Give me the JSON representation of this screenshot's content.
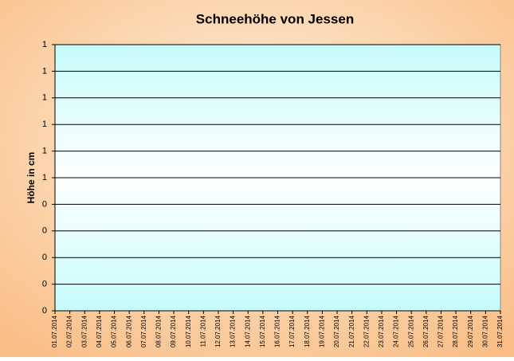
{
  "chart_data": {
    "type": "line",
    "title": "Schneehöhe von Jessen",
    "y_label": "Höhe in cm",
    "categories": [
      "01.07.2014",
      "02.07.2014",
      "03.07.2014",
      "04.07.2014",
      "05.07.2014",
      "06.07.2014",
      "07.07.2014",
      "08.07.2014",
      "09.07.2014",
      "10.07.2014",
      "11.07.2014",
      "12.07.2014",
      "13.07.2014",
      "14.07.2014",
      "15.07.2014",
      "16.07.2014",
      "17.07.2014",
      "18.07.2014",
      "19.07.2014",
      "20.07.2014",
      "21.07.2014",
      "22.07.2014",
      "23.07.2014",
      "24.07.2014",
      "25.07.2014",
      "26.07.2014",
      "27.07.2014",
      "28.07.2014",
      "29.07.2014",
      "30.07.2014",
      "31.07.2014"
    ],
    "ylim": [
      0,
      1
    ],
    "yticks": [
      0,
      {
        "value": 0.1,
        "label": "0"
      },
      {
        "value": 0.2,
        "label": "0"
      },
      {
        "value": 0.3,
        "label": "0"
      },
      {
        "value": 0.4,
        "label": "0"
      },
      {
        "value": 0.5,
        "label": "1"
      },
      {
        "value": 0.6,
        "label": "1"
      },
      {
        "value": 0.7,
        "label": "1"
      },
      {
        "value": 0.8,
        "label": "1"
      },
      {
        "value": 0.9,
        "label": "1"
      },
      1
    ],
    "grid": true
  }
}
